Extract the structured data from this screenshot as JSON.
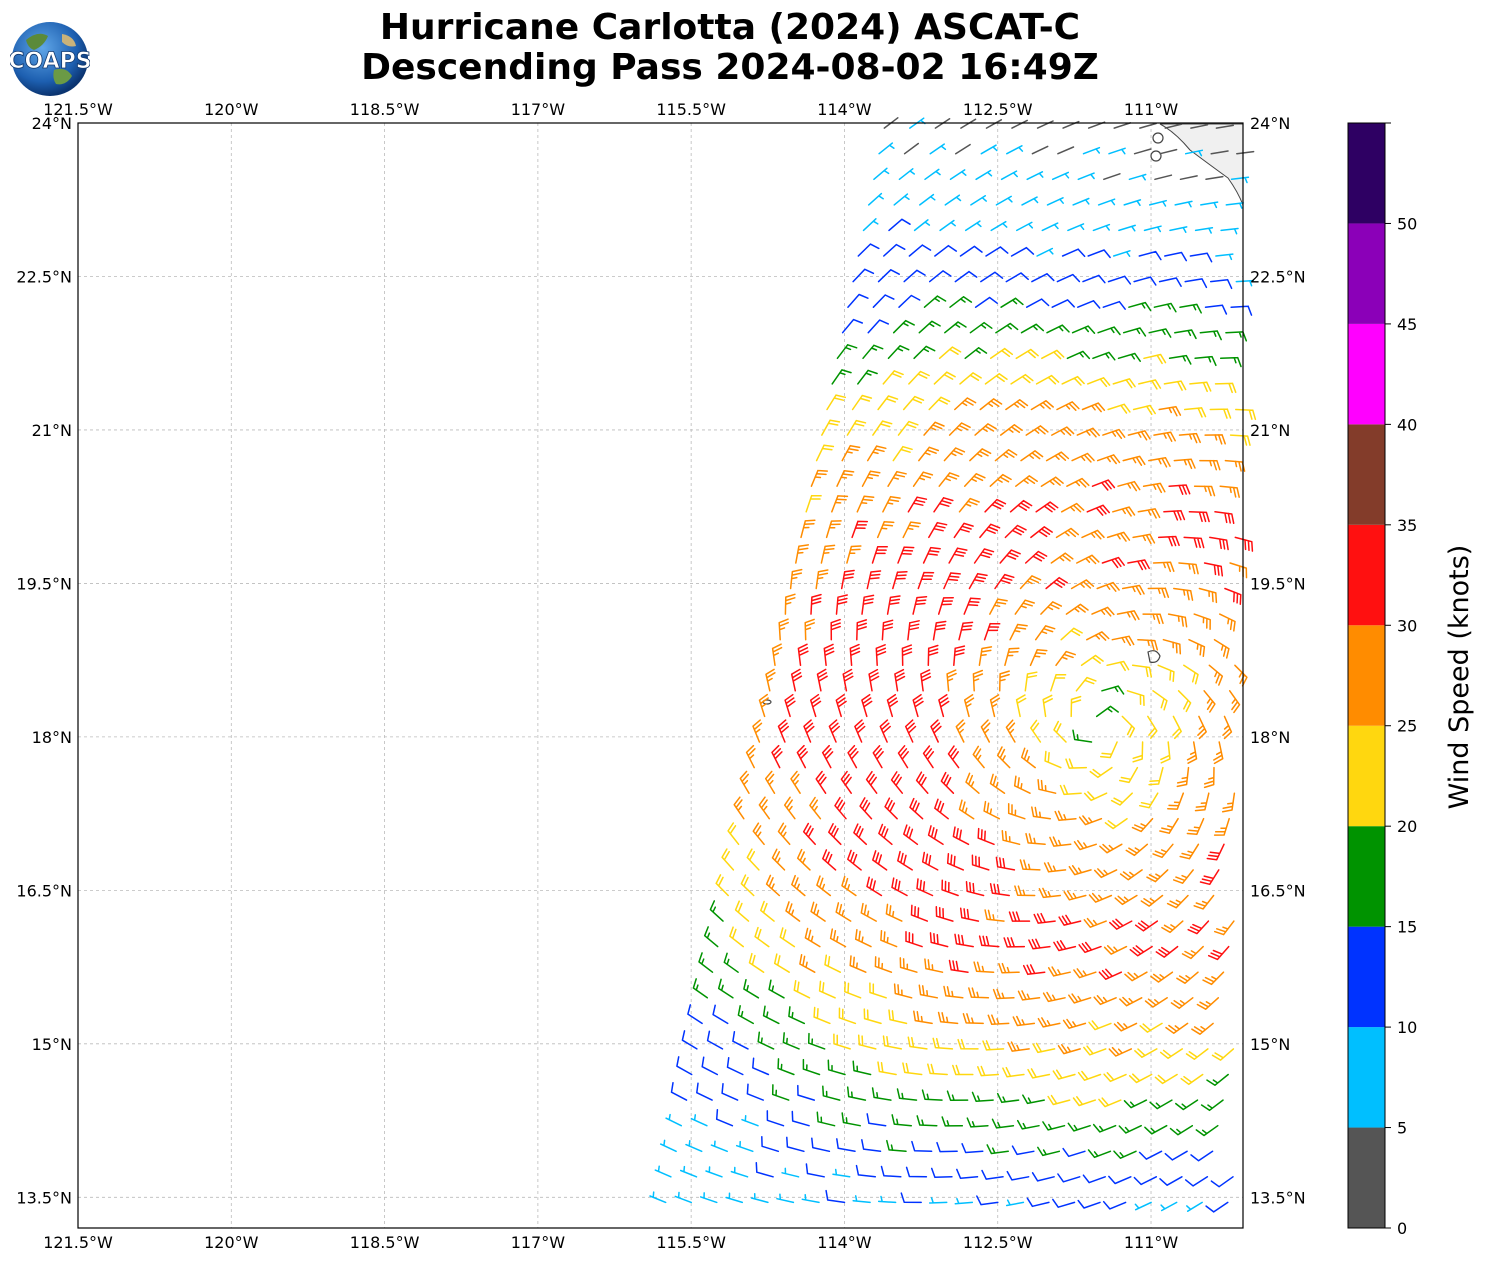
{
  "title_line1": "Hurricane Carlotta (2024) ASCAT-C",
  "title_line2": "Descending Pass 2024-08-02 16:49Z",
  "logo_text": "COAPS",
  "map": {
    "lon_range": [
      -121.5,
      -110.1
    ],
    "lat_range": [
      13.2,
      24.0
    ],
    "lon_ticks": [
      -121.5,
      -120.0,
      -118.5,
      -117.0,
      -115.5,
      -114.0,
      -112.5,
      -111.0
    ],
    "lon_tick_labels": [
      "121.5°W",
      "120°W",
      "118.5°W",
      "117°W",
      "115.5°W",
      "114°W",
      "112.5°W",
      "111°W"
    ],
    "lat_ticks": [
      24.0,
      22.5,
      21.0,
      19.5,
      18.0,
      16.5,
      15.0,
      13.5
    ],
    "lat_tick_labels": [
      "24°N",
      "22.5°N",
      "21°N",
      "19.5°N",
      "18°N",
      "16.5°N",
      "15°N",
      "13.5°N"
    ],
    "grid": true,
    "storm_center_approx": {
      "lon": -111.5,
      "lat": 18.1
    }
  },
  "colorbar": {
    "label": "Wind Speed (knots)",
    "ticks": [
      0,
      5,
      10,
      15,
      20,
      25,
      30,
      35,
      40,
      45,
      50
    ],
    "tick_labels": [
      "0",
      "5",
      "10",
      "15",
      "20",
      "25",
      "30",
      "35",
      "40",
      "45",
      "50"
    ],
    "bins": [
      {
        "min": 0,
        "max": 5,
        "color": "#555555"
      },
      {
        "min": 5,
        "max": 10,
        "color": "#00bfff"
      },
      {
        "min": 10,
        "max": 15,
        "color": "#0033ff"
      },
      {
        "min": 15,
        "max": 20,
        "color": "#009300"
      },
      {
        "min": 20,
        "max": 25,
        "color": "#ffd70f"
      },
      {
        "min": 25,
        "max": 30,
        "color": "#ff8c00"
      },
      {
        "min": 30,
        "max": 35,
        "color": "#ff1010"
      },
      {
        "min": 35,
        "max": 40,
        "color": "#833c2a"
      },
      {
        "min": 40,
        "max": 45,
        "color": "#ff00ff"
      },
      {
        "min": 45,
        "max": 50,
        "color": "#8b00b8"
      },
      {
        "min": 50,
        "max": 55,
        "color": "#2e0063"
      }
    ]
  }
}
